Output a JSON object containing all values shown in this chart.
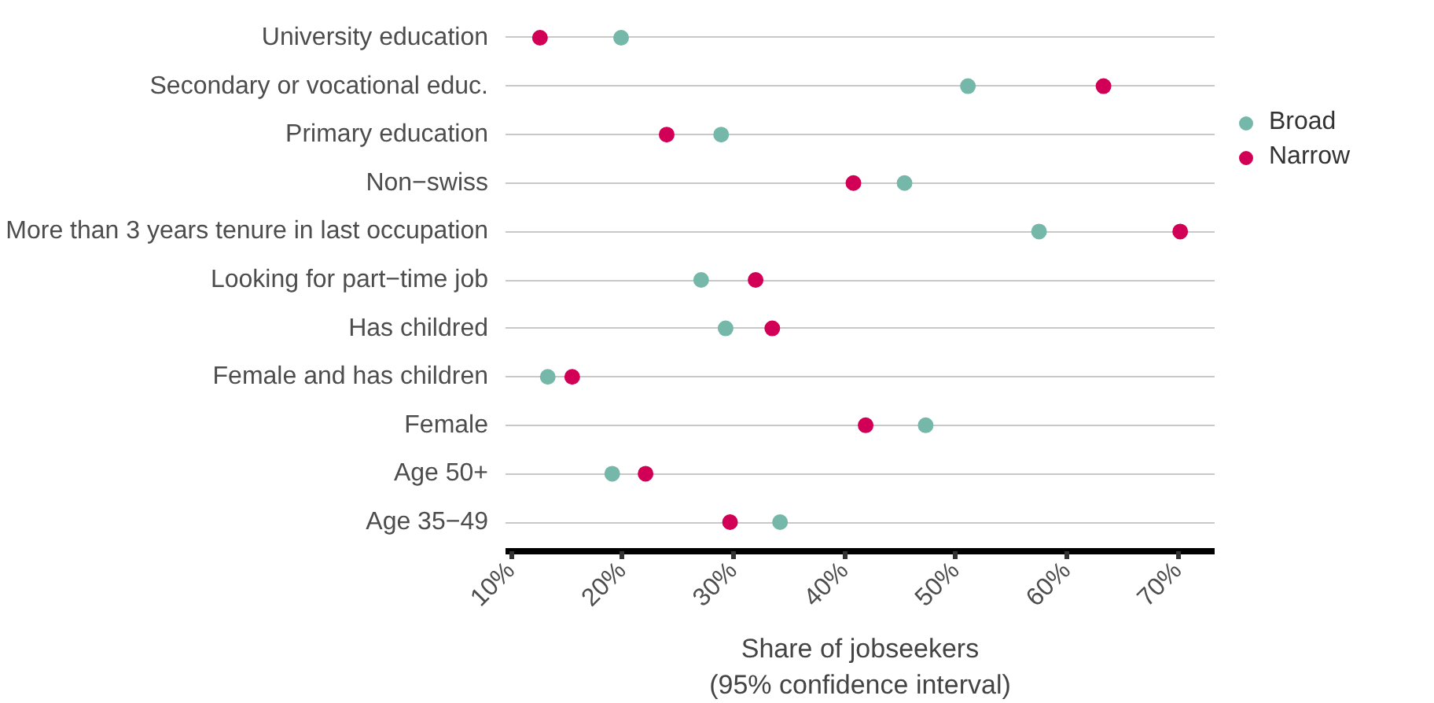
{
  "chart_data": {
    "type": "scatter",
    "orientation": "horizontal",
    "xlabel": "Share of jobseekers\n(95% confidence interval)",
    "categories": [
      "University education",
      "Secondary or vocational educ.",
      "Primary education",
      "Non−swiss",
      "More than 3 years tenure in last occupation",
      "Looking for part−time job",
      "Has childred",
      "Female and has children",
      "Female",
      "Age 50+",
      "Age 35−49"
    ],
    "series": [
      {
        "name": "Broad",
        "color": "#75b8aa",
        "values": [
          19.9,
          51.1,
          28.9,
          45.4,
          57.5,
          27.1,
          29.3,
          13.3,
          47.3,
          19.1,
          34.2
        ]
      },
      {
        "name": "Narrow",
        "color": "#d10056",
        "values": [
          12.6,
          63.3,
          24.0,
          40.8,
          70.2,
          32.0,
          33.5,
          15.5,
          41.9,
          22.1,
          29.7
        ]
      }
    ],
    "xlim": [
      9.5,
      73.3
    ],
    "xticks": [
      {
        "value": 10,
        "label": "10%"
      },
      {
        "value": 20,
        "label": "20%"
      },
      {
        "value": 30,
        "label": "30%"
      },
      {
        "value": 40,
        "label": "40%"
      },
      {
        "value": 50,
        "label": "50%"
      },
      {
        "value": 60,
        "label": "60%"
      },
      {
        "value": 70,
        "label": "70%"
      }
    ],
    "grid": "y",
    "legend": "right",
    "marker": "circle"
  }
}
